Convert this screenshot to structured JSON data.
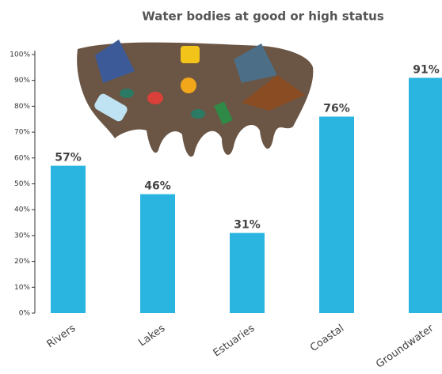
{
  "chart_data": {
    "type": "bar",
    "title": "Water bodies at good or high status",
    "categories": [
      "Rivers",
      "Lakes",
      "Estuaries",
      "Coastal",
      "Groundwater"
    ],
    "values": [
      57,
      46,
      31,
      76,
      91
    ],
    "value_labels": [
      "57%",
      "46%",
      "31%",
      "76%",
      "91%"
    ],
    "color": "#29b5e0",
    "ylim": [
      0,
      100
    ],
    "yticks": [
      {
        "value": 0,
        "label": "0%"
      },
      {
        "value": 10,
        "label": "10%"
      },
      {
        "value": 20,
        "label": "20%"
      },
      {
        "value": 30,
        "label": "30%"
      },
      {
        "value": 40,
        "label": "40%"
      },
      {
        "value": 50,
        "label": "50%"
      },
      {
        "value": 60,
        "label": "60%"
      },
      {
        "value": 70,
        "label": "70%"
      },
      {
        "value": 80,
        "label": "80%"
      },
      {
        "value": 90,
        "label": "90%"
      },
      {
        "value": 100,
        "label": "100%"
      }
    ]
  }
}
